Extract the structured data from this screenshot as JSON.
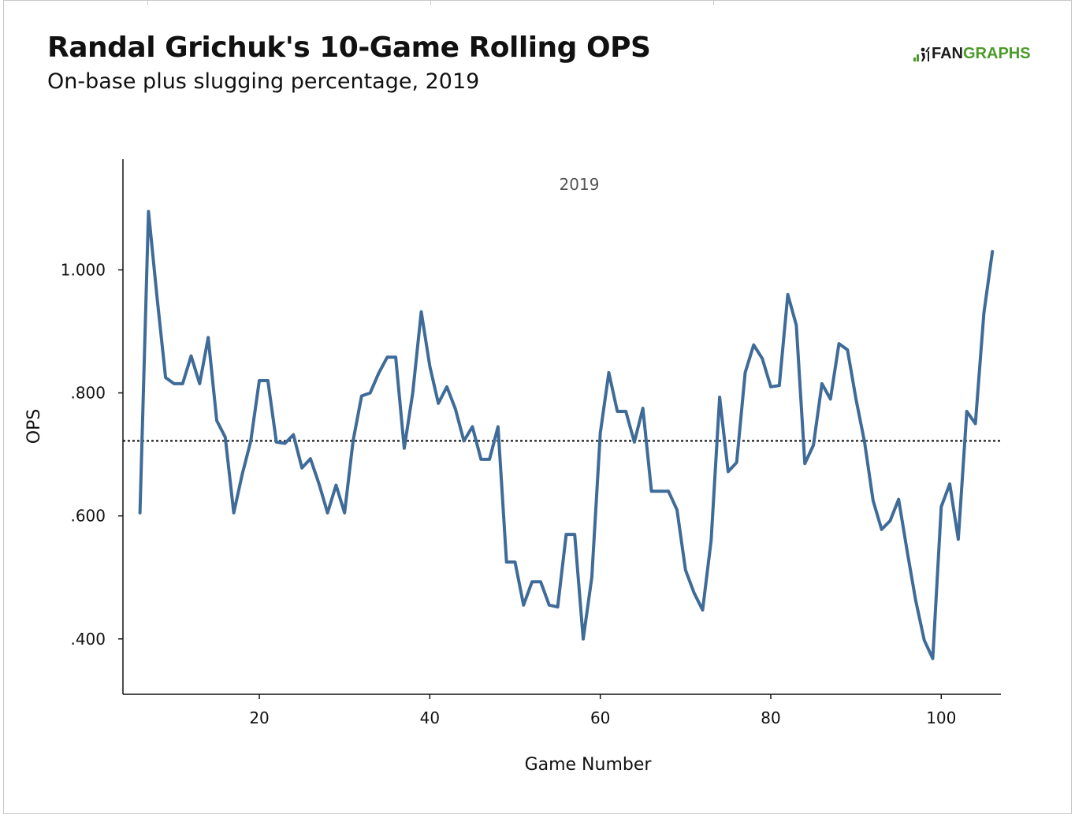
{
  "header": {
    "title": "Randal Grichuk's 10-Game Rolling OPS",
    "subtitle": "On-base plus slugging percentage, 2019"
  },
  "logo": {
    "part1": "FAN",
    "part2": "GRAPHS",
    "accent": "#4c9a2a"
  },
  "chart_data": {
    "type": "line",
    "title": "Randal Grichuk's 10-Game Rolling OPS",
    "subtitle": "On-base plus slugging percentage, 2019",
    "xlabel": "Game Number",
    "ylabel": "OPS",
    "annotation": "2019",
    "xlim": [
      4,
      107
    ],
    "ylim": [
      0.31,
      1.18
    ],
    "x_ticks": [
      20,
      40,
      60,
      80,
      100
    ],
    "x_tick_labels": [
      "20",
      "40",
      "60",
      "80",
      "100"
    ],
    "y_ticks": [
      0.4,
      0.6,
      0.8,
      1.0
    ],
    "y_tick_labels": [
      ".400",
      ".600",
      ".800",
      "1.000"
    ],
    "reference_line": {
      "y": 0.722,
      "style": "dotted",
      "color": "#111111"
    },
    "line_color": "#3f6b99",
    "grid": false,
    "series": [
      {
        "name": "10-Game Rolling OPS",
        "x": [
          6,
          7,
          8,
          9,
          10,
          11,
          12,
          13,
          14,
          15,
          16,
          17,
          18,
          19,
          20,
          21,
          22,
          23,
          24,
          25,
          26,
          27,
          28,
          29,
          30,
          31,
          32,
          33,
          34,
          35,
          36,
          37,
          38,
          39,
          40,
          41,
          42,
          43,
          44,
          45,
          46,
          47,
          48,
          49,
          50,
          51,
          52,
          53,
          54,
          55,
          56,
          57,
          58,
          59,
          60,
          61,
          62,
          63,
          64,
          65,
          66,
          67,
          68,
          69,
          70,
          71,
          72,
          73,
          74,
          75,
          76,
          77,
          78,
          79,
          80,
          81,
          82,
          83,
          84,
          85,
          86,
          87,
          88,
          89,
          90,
          91,
          92,
          93,
          94,
          95,
          96,
          97,
          98,
          99,
          100,
          101,
          102,
          103,
          104,
          105,
          106
        ],
        "values": [
          0.605,
          1.095,
          0.955,
          0.825,
          0.815,
          0.815,
          0.86,
          0.815,
          0.89,
          0.755,
          0.728,
          0.605,
          0.668,
          0.722,
          0.82,
          0.82,
          0.72,
          0.718,
          0.732,
          0.678,
          0.693,
          0.652,
          0.605,
          0.65,
          0.605,
          0.722,
          0.795,
          0.8,
          0.832,
          0.858,
          0.858,
          0.71,
          0.8,
          0.932,
          0.843,
          0.783,
          0.81,
          0.774,
          0.722,
          0.745,
          0.692,
          0.692,
          0.745,
          0.525,
          0.525,
          0.455,
          0.493,
          0.493,
          0.455,
          0.452,
          0.57,
          0.57,
          0.4,
          0.5,
          0.735,
          0.833,
          0.77,
          0.77,
          0.72,
          0.775,
          0.64,
          0.64,
          0.64,
          0.61,
          0.512,
          0.475,
          0.447,
          0.56,
          0.793,
          0.672,
          0.687,
          0.833,
          0.878,
          0.856,
          0.81,
          0.812,
          0.96,
          0.91,
          0.685,
          0.715,
          0.815,
          0.79,
          0.88,
          0.87,
          0.79,
          0.72,
          0.625,
          0.578,
          0.592,
          0.627,
          0.543,
          0.463,
          0.398,
          0.368,
          0.615,
          0.652,
          0.562,
          0.77,
          0.75,
          0.93,
          1.03
        ]
      }
    ]
  }
}
